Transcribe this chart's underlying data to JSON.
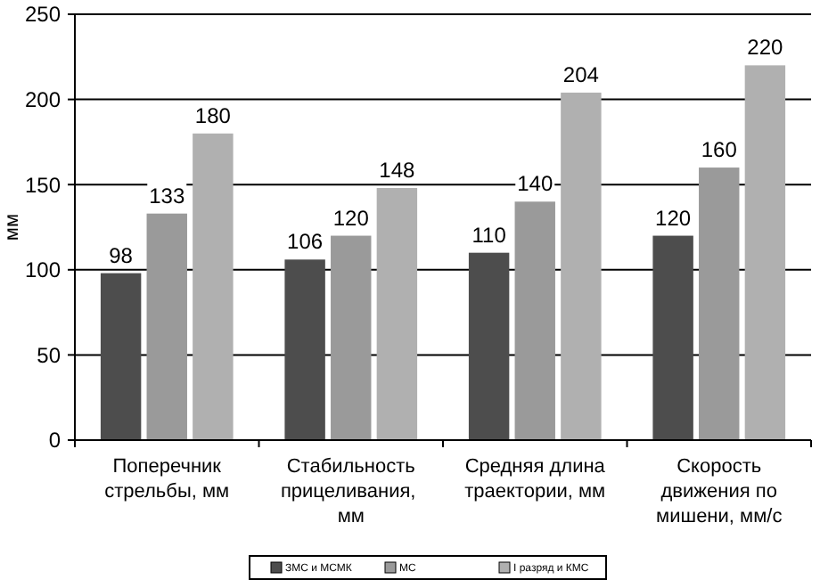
{
  "chart_data": {
    "type": "bar",
    "ylabel": "мм",
    "categories": [
      "Поперечник стрельбы, мм",
      "Стабильность прицеливания,  мм",
      "Средняя длина траектории, мм",
      "Скорость движения по мишени, мм/с"
    ],
    "series": [
      {
        "name": "ЗМС  и МСМК",
        "color": "#4d4d4d",
        "values": [
          98,
          106,
          110,
          120
        ]
      },
      {
        "name": "МС",
        "color": "#9a9a9a",
        "values": [
          133,
          120,
          140,
          160
        ]
      },
      {
        "name": "I разряд  и КМС",
        "color": "#b0b0b0",
        "values": [
          180,
          148,
          204,
          220
        ]
      }
    ],
    "ylim": [
      0,
      250
    ],
    "yticks": [
      0,
      50,
      100,
      150,
      200,
      250
    ],
    "grid": "y",
    "data_labels": true,
    "legend": "bottom"
  }
}
